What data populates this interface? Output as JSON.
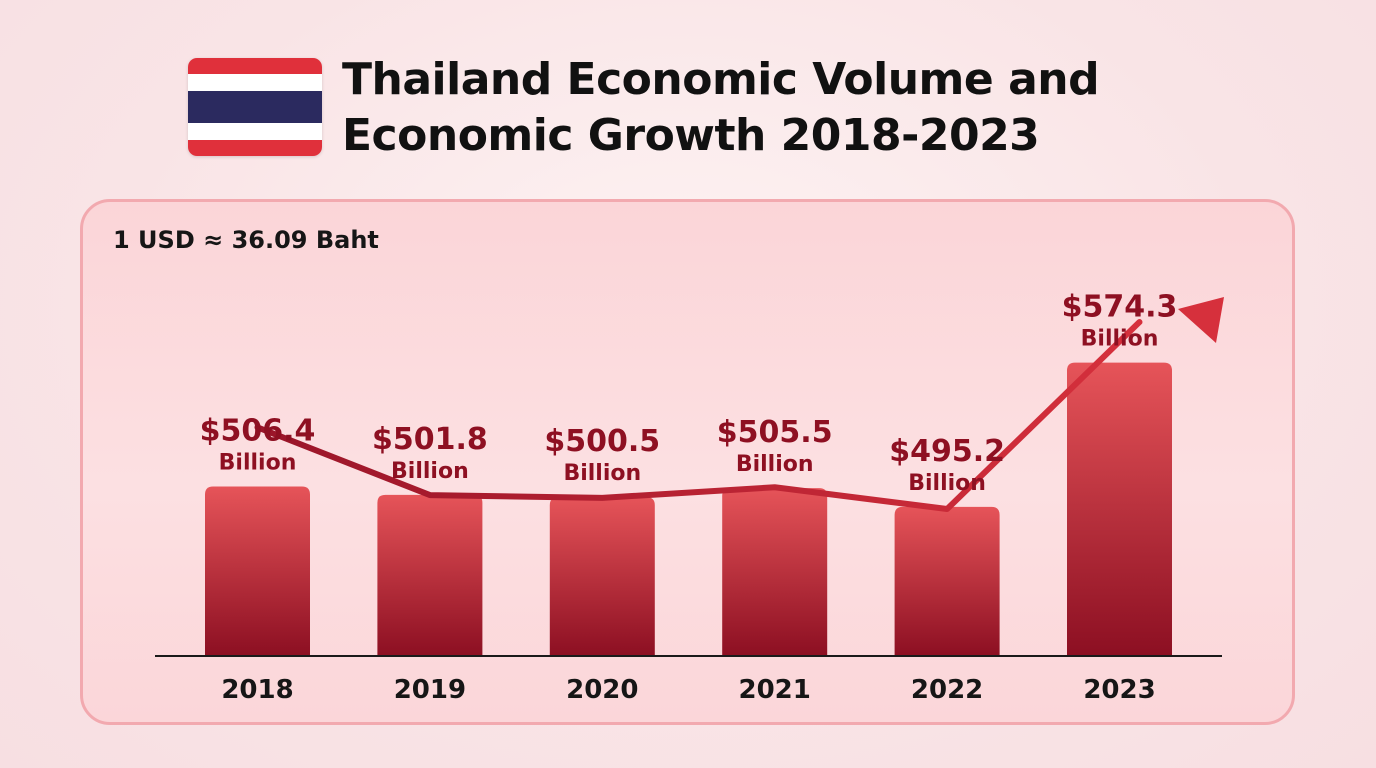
{
  "header": {
    "title_line1": "Thailand Economic Volume and",
    "title_line2": "Economic Growth 2018-2023"
  },
  "note": "1 USD ≈ 36.09 Baht",
  "colors": {
    "bar_top": "#e65459",
    "bar_bottom": "#8c0f22",
    "trend": "#d6303c",
    "label": "#8e1022",
    "flag_red": "#e0303b",
    "flag_blue": "#2b2a5f"
  },
  "chart_data": {
    "type": "bar",
    "categories": [
      "2018",
      "2019",
      "2020",
      "2021",
      "2022",
      "2023"
    ],
    "values": [
      506.4,
      501.8,
      500.5,
      505.5,
      495.2,
      574.3
    ],
    "value_labels": [
      "$506.4",
      "$501.8",
      "$500.5",
      "$505.5",
      "$495.2",
      "$574.3"
    ],
    "unit_label": "Billion",
    "title": "Thailand Economic Volume and Economic Growth 2018-2023",
    "xlabel": "",
    "ylabel": "",
    "ylim": [
      420,
      590
    ],
    "grid": false,
    "legend": "none",
    "trend_line": "upward arrow"
  }
}
